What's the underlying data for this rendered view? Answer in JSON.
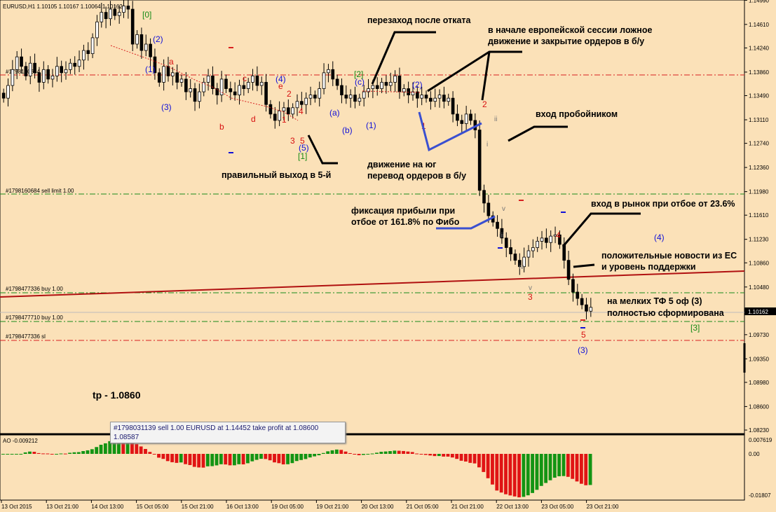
{
  "header": {
    "symbol_info": "EURUSD,H1  1.10105 1.10167 1.10064 1.10162"
  },
  "colors": {
    "background": "#fbe1b8",
    "bull_candle": "#ffffff",
    "bear_candle": "#000000",
    "ao_up": "#139413",
    "ao_down": "#e01414",
    "order_line_red": "#d82020",
    "order_line_green": "#1a8c1a",
    "trendline": "#b01010",
    "wave_blue": "#1010d8",
    "wave_red": "#d81010"
  },
  "order_labels": [
    {
      "id": "sl_top",
      "text": "#1798160684 sl"
    },
    {
      "id": "sell_limit",
      "text": "#1798160684 sell limit 1.00"
    },
    {
      "id": "buy1",
      "text": "#1798477336 buy 1.00"
    },
    {
      "id": "buy2",
      "text": "#1798477710 buy 1.00"
    },
    {
      "id": "sl_bottom",
      "text": "#1798477336 sl"
    }
  ],
  "annotations": {
    "overshoot": "перезаход после отката",
    "eu_session_1": "в начале европейской сессии ложное",
    "eu_session_2": "движение и закрытие ордеров в б/у",
    "breakout_entry": "вход пробойником",
    "correct_exit": "правильный выход в 5-й",
    "move_south_1": "движение на юг",
    "move_south_2": "перевод ордеров в б/у",
    "profit_1": "фиксация прибыли при",
    "profit_2": "отбое от 161.8% по Фибо",
    "market_entry": "вход в рынок при отбое от 23.6%",
    "news_1": "положительные новости из ЕС",
    "news_2": "и уровень поддержки",
    "small_tf_1": "на мелких ТФ 5 оф (3)",
    "small_tf_2": "полностью сформирована",
    "tp": "tp - 1.0860"
  },
  "tooltip": {
    "line1": "#1798031139 sell 1.00 EURUSD at 1.14452 take profit at 1.08600",
    "line2": "1.08587"
  },
  "price_badge": "1.10162",
  "indicator": {
    "label": "AO -0.009212",
    "scale": [
      "0.007619",
      "0.00",
      "-0.01807"
    ]
  },
  "chart_data": [
    {
      "type": "candlestick",
      "title": "EURUSD,H1",
      "ylim": [
        1.0823,
        1.1495
      ],
      "price_axis_ticks": [
        "1.14990",
        "1.14610",
        "1.14240",
        "1.13860",
        "1.13490",
        "1.13110",
        "1.12740",
        "1.12360",
        "1.11980",
        "1.11610",
        "1.11230",
        "1.10860",
        "1.10480",
        "1.10162",
        "1.09730",
        "1.09350",
        "1.08980",
        "1.08600",
        "1.08230"
      ],
      "time_axis_ticks": [
        "13 Oct 2015",
        "13 Oct 21:00",
        "14 Oct 13:00",
        "15 Oct 05:00",
        "15 Oct 21:00",
        "16 Oct 13:00",
        "19 Oct 05:00",
        "19 Oct 21:00",
        "20 Oct 13:00",
        "21 Oct 05:00",
        "21 Oct 21:00",
        "22 Oct 13:00",
        "23 Oct 05:00",
        "23 Oct 21:00"
      ],
      "last_ohlc": {
        "open": 1.10105,
        "high": 1.10167,
        "low": 1.10064,
        "close": 1.10162
      },
      "approx_closes": [
        1.1345,
        1.1365,
        1.139,
        1.141,
        1.1395,
        1.138,
        1.14,
        1.1385,
        1.137,
        1.139,
        1.1375,
        1.138,
        1.1395,
        1.1385,
        1.139,
        1.14,
        1.1395,
        1.1405,
        1.142,
        1.1415,
        1.144,
        1.1465,
        1.148,
        1.147,
        1.1485,
        1.1475,
        1.148,
        1.149,
        1.1485,
        1.143,
        1.1445,
        1.142,
        1.143,
        1.141,
        1.1385,
        1.137,
        1.1395,
        1.138,
        1.1385,
        1.137,
        1.1375,
        1.1355,
        1.136,
        1.134,
        1.1355,
        1.137,
        1.138,
        1.136,
        1.135,
        1.1375,
        1.136,
        1.1355,
        1.135,
        1.1365,
        1.136,
        1.137,
        1.138,
        1.1365,
        1.137,
        1.1335,
        1.132,
        1.131,
        1.1325,
        1.133,
        1.132,
        1.133,
        1.134,
        1.1335,
        1.1345,
        1.135,
        1.1345,
        1.136,
        1.1385,
        1.139,
        1.1375,
        1.1365,
        1.135,
        1.1345,
        1.135,
        1.134,
        1.1345,
        1.1355,
        1.136,
        1.1365,
        1.136,
        1.137,
        1.1365,
        1.137,
        1.138,
        1.1355,
        1.136,
        1.135,
        1.1355,
        1.1345,
        1.135,
        1.1345,
        1.134,
        1.1345,
        1.135,
        1.134,
        1.1345,
        1.132,
        1.131,
        1.1305,
        1.132,
        1.131,
        1.1295,
        1.12,
        1.118,
        1.116,
        1.115,
        1.114,
        1.1125,
        1.111,
        1.11,
        1.109,
        1.108,
        1.1095,
        1.1105,
        1.111,
        1.112,
        1.1125,
        1.1118,
        1.1128,
        1.113,
        1.1115,
        1.109,
        1.106,
        1.104,
        1.103,
        1.102,
        1.101,
        1.1016
      ]
    },
    {
      "type": "bar",
      "title": "AO",
      "ylim": [
        -0.01807,
        0.007619
      ],
      "last_value": -0.009212
    }
  ]
}
